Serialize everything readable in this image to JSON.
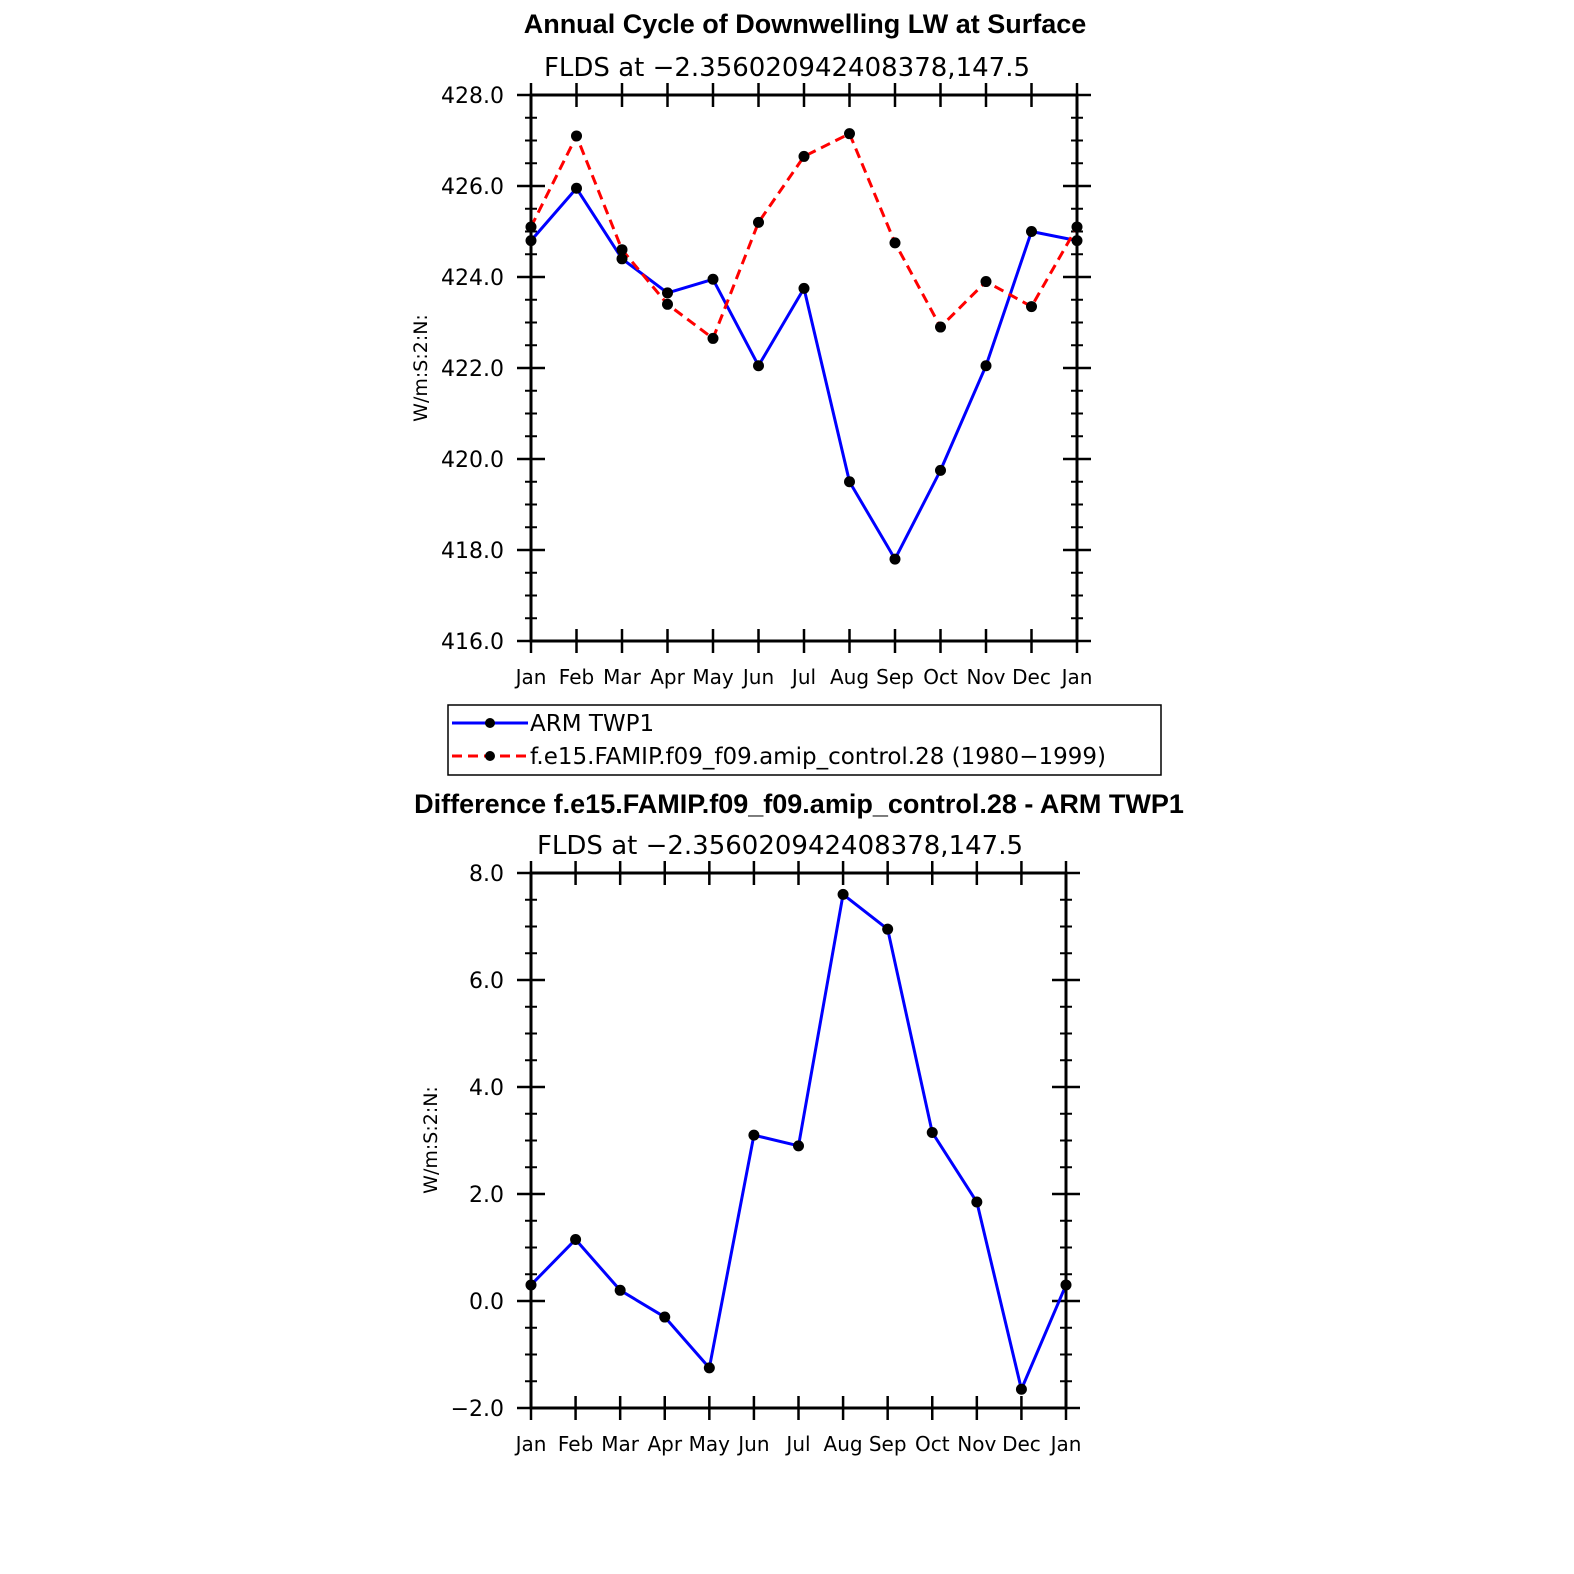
{
  "chart_data": [
    {
      "type": "line",
      "title": "Annual Cycle of Downwelling LW at Surface",
      "subtitle": "FLDS at −2.356020942408378,147.5",
      "ylabel": "W/m:S:2:N:",
      "xlabel": "",
      "categories": [
        "Jan",
        "Feb",
        "Mar",
        "Apr",
        "May",
        "Jun",
        "Jul",
        "Aug",
        "Sep",
        "Oct",
        "Nov",
        "Dec",
        "Jan"
      ],
      "ylim": [
        416.0,
        428.0
      ],
      "yticks": [
        "416.0",
        "418.0",
        "420.0",
        "422.0",
        "424.0",
        "426.0",
        "428.0"
      ],
      "grid": false,
      "legend_position": "below",
      "series": [
        {
          "name": "ARM TWP1",
          "color": "#0000ff",
          "dash": "solid",
          "values": [
            424.8,
            425.95,
            424.4,
            423.65,
            423.95,
            422.05,
            423.75,
            419.5,
            417.8,
            419.75,
            422.05,
            425.0,
            424.8
          ]
        },
        {
          "name": "f.e15.FAMIP.f09_f09.amip_control.28 (1980−1999)",
          "color": "#ff0000",
          "dash": "dashed",
          "values": [
            425.1,
            427.1,
            424.6,
            423.4,
            422.65,
            425.2,
            426.65,
            427.15,
            424.75,
            422.9,
            423.9,
            423.35,
            425.1
          ]
        }
      ]
    },
    {
      "type": "line",
      "title": "Difference f.e15.FAMIP.f09_f09.amip_control.28 - ARM TWP1",
      "subtitle": "FLDS at −2.356020942408378,147.5",
      "ylabel": "W/m:S:2:N:",
      "xlabel": "",
      "categories": [
        "Jan",
        "Feb",
        "Mar",
        "Apr",
        "May",
        "Jun",
        "Jul",
        "Aug",
        "Sep",
        "Oct",
        "Nov",
        "Dec",
        "Jan"
      ],
      "ylim": [
        -2.0,
        8.0
      ],
      "yticks": [
        "−2.0",
        "0.0",
        "2.0",
        "4.0",
        "6.0",
        "8.0"
      ],
      "grid": false,
      "series": [
        {
          "color": "#0000ff",
          "dash": "solid",
          "values": [
            0.3,
            1.15,
            0.2,
            -0.3,
            -1.25,
            3.1,
            2.9,
            7.6,
            6.95,
            3.15,
            1.85,
            -1.65,
            0.3
          ]
        }
      ]
    }
  ]
}
